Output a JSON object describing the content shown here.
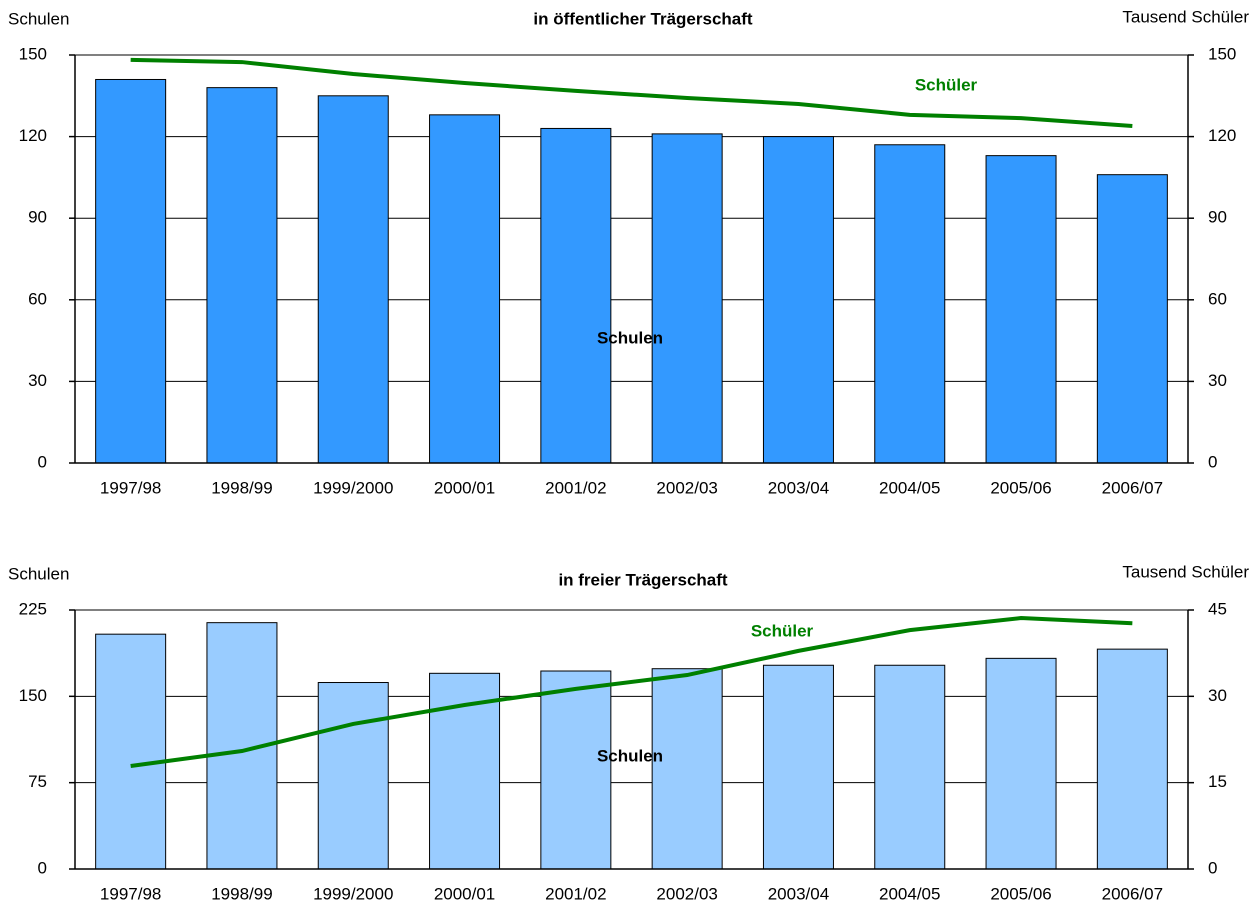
{
  "chart_data": [
    {
      "type": "bar_line",
      "title": "in öffentlicher Trägerschaft",
      "ylabel": "Schulen",
      "y2label": "Tausend Schüler",
      "categories": [
        "1997/98",
        "1998/99",
        "1999/2000",
        "2000/01",
        "2001/02",
        "2002/03",
        "2003/04",
        "2004/05",
        "2005/06",
        "2006/07"
      ],
      "series": [
        {
          "name": "Schulen",
          "type": "bar",
          "color": "#3399ff",
          "values": [
            141,
            138,
            135,
            128,
            123,
            121,
            120,
            117,
            113,
            106
          ]
        },
        {
          "name": "Schüler",
          "type": "line",
          "axis": "y2",
          "color": "#008000",
          "values": [
            148.2,
            147.4,
            143,
            139.7,
            136.8,
            134.2,
            132,
            128,
            126.8,
            123.9
          ]
        }
      ],
      "ylim": [
        0,
        150
      ],
      "yticks": [
        0,
        30,
        60,
        90,
        120,
        150
      ],
      "y2lim": [
        0,
        150
      ],
      "y2ticks": [
        0,
        30,
        60,
        90,
        120,
        150
      ],
      "grid": true
    },
    {
      "type": "bar_line",
      "title": "in freier Trägerschaft",
      "ylabel": "Schulen",
      "y2label": "Tausend Schüler",
      "categories": [
        "1997/98",
        "1998/99",
        "1999/2000",
        "2000/01",
        "2001/02",
        "2002/03",
        "2003/04",
        "2004/05",
        "2005/06",
        "2006/07"
      ],
      "series": [
        {
          "name": "Schulen",
          "type": "bar",
          "color": "#99ccff",
          "values": [
            204,
            214,
            162,
            170,
            172,
            174,
            177,
            177,
            183,
            191
          ]
        },
        {
          "name": "Schüler",
          "type": "line",
          "axis": "y2",
          "color": "#008000",
          "values": [
            17.9,
            20.5,
            25.2,
            28.5,
            31.3,
            33.7,
            37.9,
            41.5,
            43.6,
            42.7
          ]
        }
      ],
      "ylim": [
        0,
        225
      ],
      "yticks": [
        0,
        75,
        150,
        225
      ],
      "y2lim": [
        0,
        45
      ],
      "y2ticks": [
        0,
        15,
        30,
        45
      ],
      "grid": true
    }
  ]
}
